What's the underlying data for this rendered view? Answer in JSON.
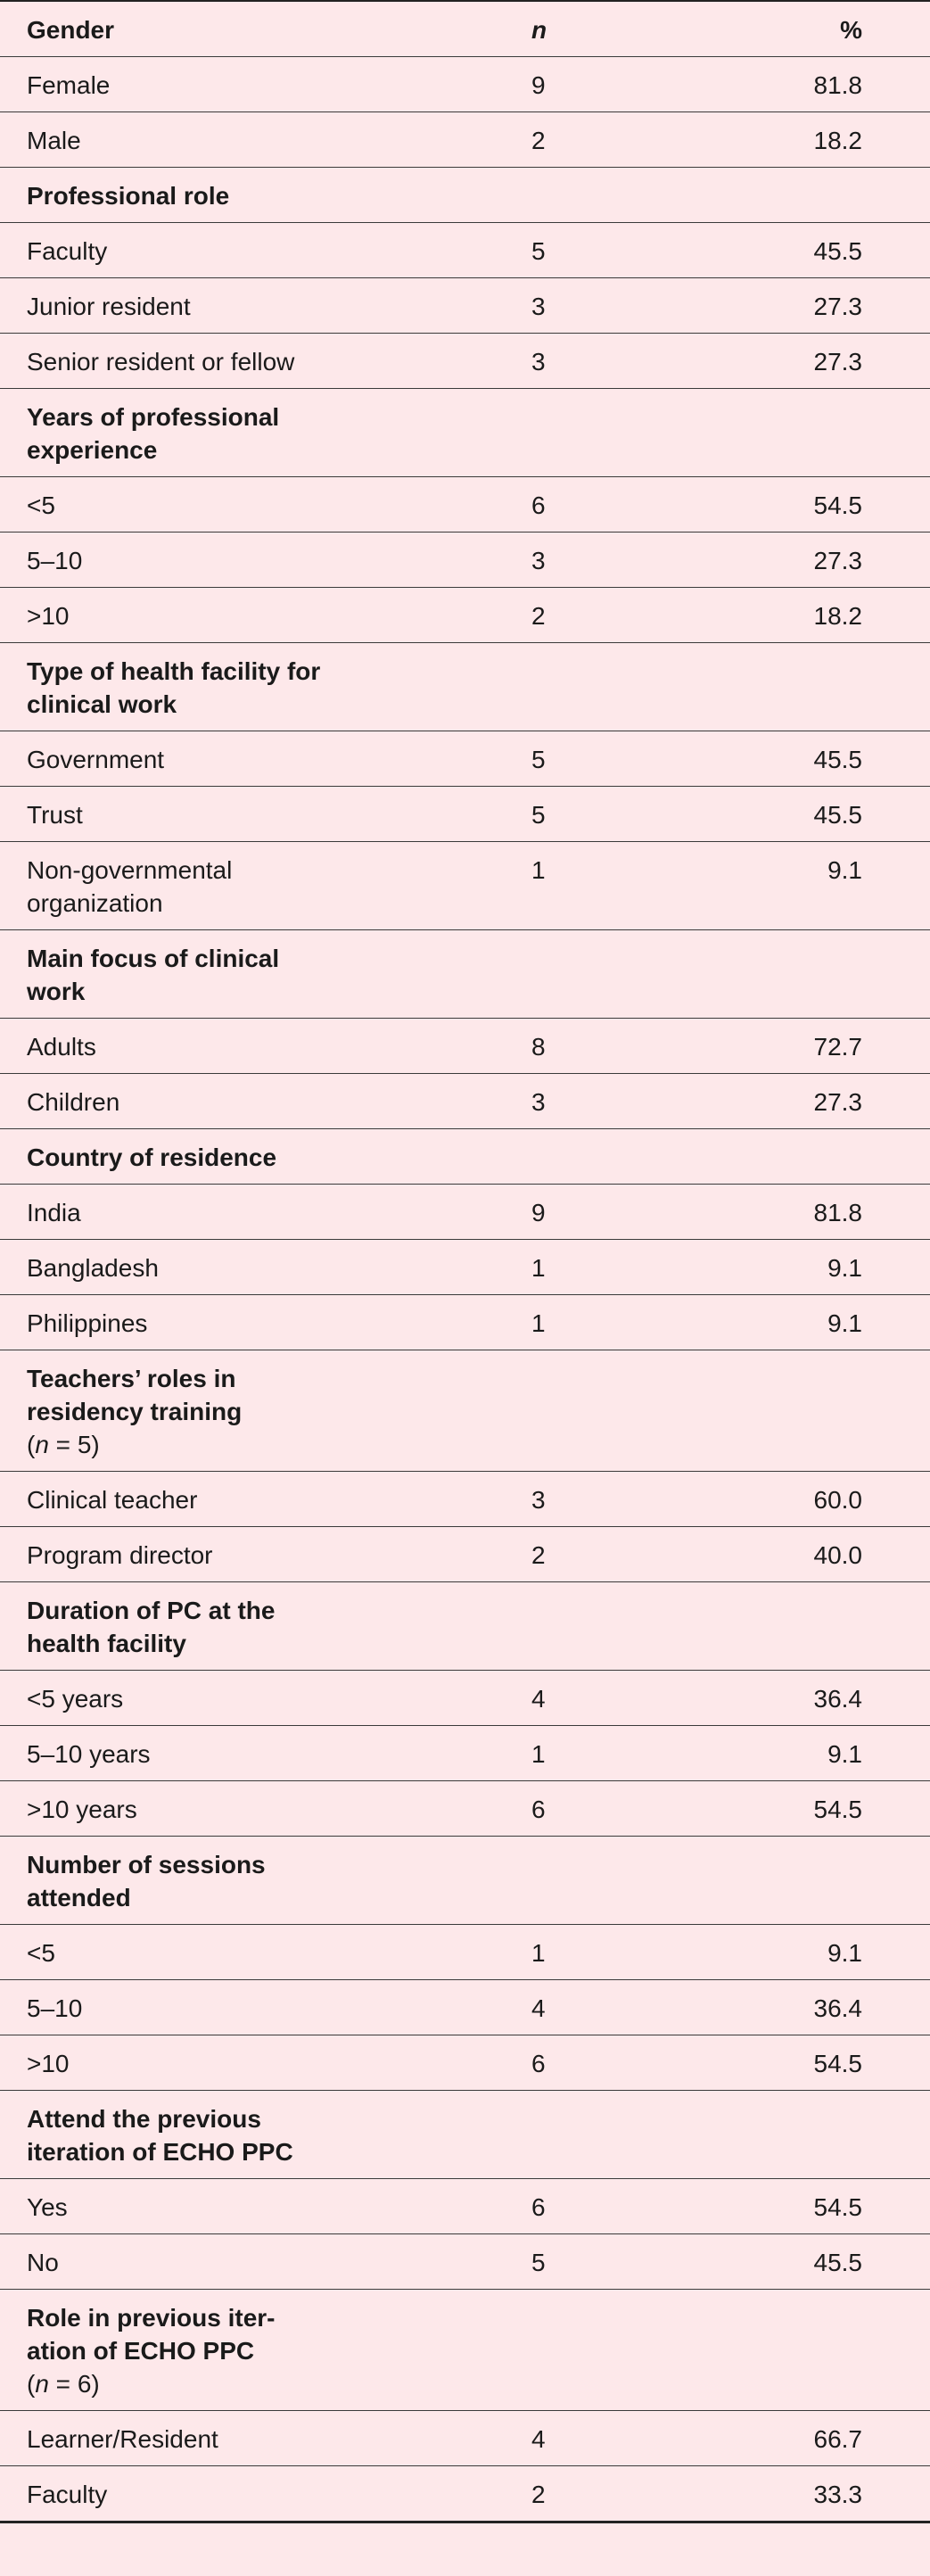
{
  "header": {
    "label": "Gender",
    "n": "n",
    "pct": "%"
  },
  "gender": [
    {
      "label": "Female",
      "n": "9",
      "pct": "81.8"
    },
    {
      "label": "Male",
      "n": "2",
      "pct": "18.2"
    }
  ],
  "role": {
    "title": "Professional role",
    "rows": [
      {
        "label": "Faculty",
        "n": "5",
        "pct": "45.5"
      },
      {
        "label": "Junior resident",
        "n": "3",
        "pct": "27.3"
      },
      {
        "label": "Senior resident or fellow",
        "n": "3",
        "pct": "27.3"
      }
    ]
  },
  "experience": {
    "title": "Years of professional experience",
    "rows": [
      {
        "label": "<5",
        "n": "6",
        "pct": "54.5"
      },
      {
        "label": "5–10",
        "n": "3",
        "pct": "27.3"
      },
      {
        "label": ">10",
        "n": "2",
        "pct": "18.2"
      }
    ]
  },
  "facility": {
    "title": "Type of health facility for clinical work",
    "rows": [
      {
        "label": "Government",
        "n": "5",
        "pct": "45.5"
      },
      {
        "label": "Trust",
        "n": "5",
        "pct": "45.5"
      },
      {
        "label": "Non-governmental organization",
        "n": "1",
        "pct": "9.1"
      }
    ]
  },
  "focus": {
    "title": "Main focus of clinical work",
    "rows": [
      {
        "label": "Adults",
        "n": "8",
        "pct": "72.7"
      },
      {
        "label": "Children",
        "n": "3",
        "pct": "27.3"
      }
    ]
  },
  "country": {
    "title": "Country of residence",
    "rows": [
      {
        "label": "India",
        "n": "9",
        "pct": "81.8"
      },
      {
        "label": "Bangladesh",
        "n": "1",
        "pct": "9.1"
      },
      {
        "label": "Philippines",
        "n": "1",
        "pct": "9.1"
      }
    ]
  },
  "teachers": {
    "title": "Teachers’ roles in residency training",
    "note_var": "n",
    "note_val": " = 5)",
    "rows": [
      {
        "label": "Clinical teacher",
        "n": "3",
        "pct": "60.0"
      },
      {
        "label": "Program director",
        "n": "2",
        "pct": "40.0"
      }
    ]
  },
  "duration": {
    "title": "Duration of PC at the health facility",
    "rows": [
      {
        "label": "<5 years",
        "n": "4",
        "pct": "36.4"
      },
      {
        "label": "5–10 years",
        "n": "1",
        "pct": "9.1"
      },
      {
        "label": ">10 years",
        "n": "6",
        "pct": "54.5"
      }
    ]
  },
  "sessions": {
    "title": "Number of sessions attended",
    "rows": [
      {
        "label": "<5",
        "n": "1",
        "pct": "9.1"
      },
      {
        "label": "5–10",
        "n": "4",
        "pct": "36.4"
      },
      {
        "label": ">10",
        "n": "6",
        "pct": "54.5"
      }
    ]
  },
  "previous": {
    "title": "Attend the previous iteration of ECHO PPC",
    "rows": [
      {
        "label": "Yes",
        "n": "6",
        "pct": "54.5"
      },
      {
        "label": "No",
        "n": "5",
        "pct": "45.5"
      }
    ]
  },
  "prevrole": {
    "title": "Role in previous iter-ation of ECHO PPC",
    "note_var": "n",
    "note_val": " = 6)",
    "rows": [
      {
        "label": "Learner/Resident",
        "n": "4",
        "pct": "66.7"
      },
      {
        "label": "Faculty",
        "n": "2",
        "pct": "33.3"
      }
    ]
  }
}
